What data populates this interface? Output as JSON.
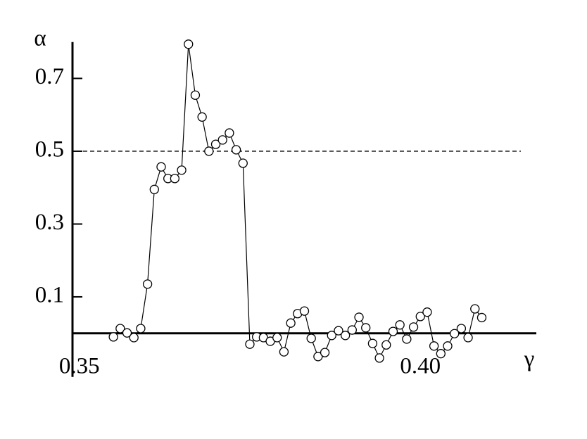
{
  "chart_data": {
    "type": "line",
    "ylabel": "α",
    "xlabel": "γ",
    "x": [
      0.355,
      0.356,
      0.357,
      0.358,
      0.359,
      0.36,
      0.361,
      0.362,
      0.363,
      0.364,
      0.365,
      0.366,
      0.367,
      0.368,
      0.369,
      0.37,
      0.371,
      0.372,
      0.373,
      0.374,
      0.375,
      0.376,
      0.377,
      0.378,
      0.379,
      0.38,
      0.381,
      0.382,
      0.383,
      0.384,
      0.385,
      0.386,
      0.387,
      0.388,
      0.389,
      0.39,
      0.391,
      0.392,
      0.393,
      0.394,
      0.395,
      0.396,
      0.397,
      0.398,
      0.399,
      0.4,
      0.401,
      0.402,
      0.403,
      0.404,
      0.405,
      0.406,
      0.407,
      0.408,
      0.409
    ],
    "series": [
      {
        "color": "#000000",
        "values": [
          -0.01,
          0.013,
          0.001,
          -0.012,
          0.013,
          0.135,
          0.395,
          0.457,
          0.425,
          0.425,
          0.448,
          0.794,
          0.654,
          0.594,
          0.5,
          0.519,
          0.531,
          0.55,
          0.504,
          0.467,
          -0.03,
          -0.01,
          -0.012,
          -0.022,
          -0.012,
          -0.051,
          0.028,
          0.054,
          0.061,
          -0.014,
          -0.064,
          -0.053,
          -0.006,
          0.007,
          -0.006,
          0.009,
          0.044,
          0.015,
          -0.028,
          -0.068,
          -0.032,
          0.005,
          0.023,
          -0.016,
          0.017,
          0.046,
          0.058,
          -0.035,
          -0.056,
          -0.035,
          -0.001,
          0.013,
          -0.012,
          0.067,
          0.043
        ]
      }
    ],
    "reference_line": 0.5,
    "xlim": [
      0.349,
      0.417
    ],
    "ylim": [
      -0.12,
      0.8
    ],
    "xticks": [
      0.35,
      {
        "value": 0.4,
        "label": "0.40"
      }
    ],
    "yticks": [
      0.1,
      0.3,
      0.5,
      0.7
    ]
  }
}
